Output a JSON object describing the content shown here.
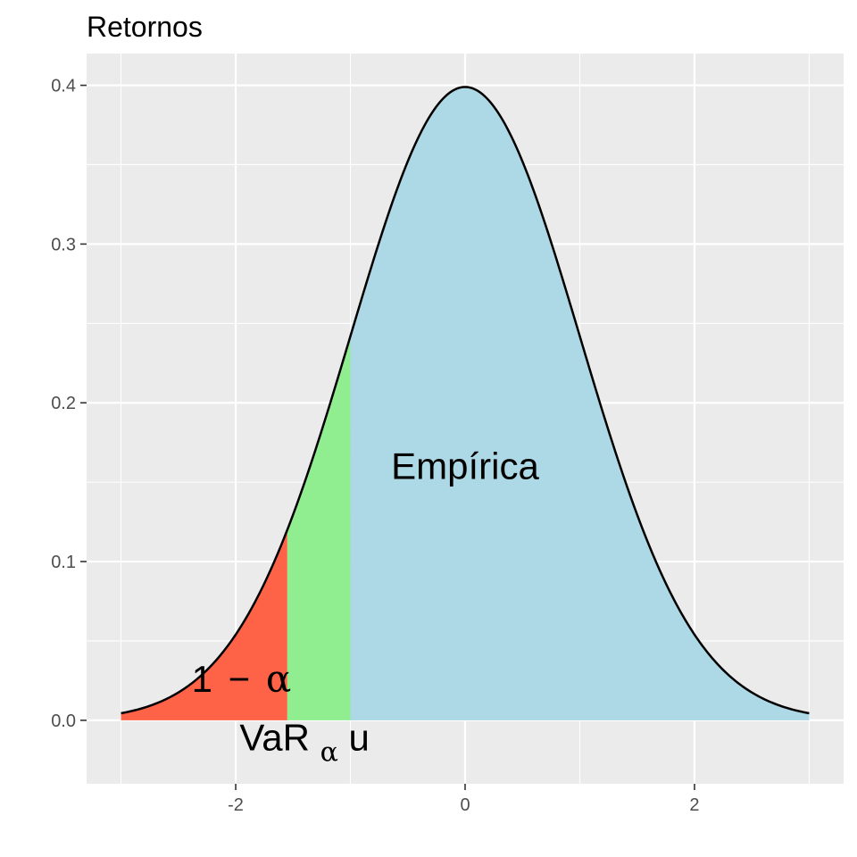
{
  "chart_data": {
    "type": "area",
    "title": "Retornos",
    "xlabel": "",
    "ylabel": "",
    "xlim": [
      -3.3,
      3.3
    ],
    "ylim": [
      -0.04,
      0.42
    ],
    "x_ticks": [
      {
        "value": -2,
        "label": "-2"
      },
      {
        "value": 0,
        "label": "0"
      },
      {
        "value": 2,
        "label": "2"
      }
    ],
    "y_ticks": [
      {
        "value": 0.0,
        "label": "0.0"
      },
      {
        "value": 0.1,
        "label": "0.1"
      },
      {
        "value": 0.2,
        "label": "0.2"
      },
      {
        "value": 0.3,
        "label": "0.3"
      },
      {
        "value": 0.4,
        "label": "0.4"
      }
    ],
    "grid": true,
    "curve": {
      "distribution": "normal",
      "mean": 0,
      "sd": 1,
      "x_range": [
        -3,
        3
      ],
      "color": "#000000"
    },
    "regions": [
      {
        "from": -3,
        "to": -1.55,
        "color": "#ff6347"
      },
      {
        "from": -1.55,
        "to": -1.0,
        "color": "#90ee90"
      },
      {
        "from": -1.0,
        "to": 3,
        "color": "#add8e6"
      }
    ],
    "annotations": [
      {
        "id": "empirica",
        "text": "Empírica",
        "x": 0,
        "y": 0.152
      },
      {
        "id": "one-minus-alpha",
        "main": "1",
        "op": "−",
        "sym": "α",
        "x": -1.95,
        "y": 0.018
      },
      {
        "id": "var-alpha",
        "main": "VaR",
        "sub": "α",
        "tail": "u",
        "x": -1.4,
        "y": -0.019
      }
    ],
    "colors": {
      "panel": "#ebebeb",
      "grid": "#ffffff",
      "tick": "#333333"
    }
  }
}
